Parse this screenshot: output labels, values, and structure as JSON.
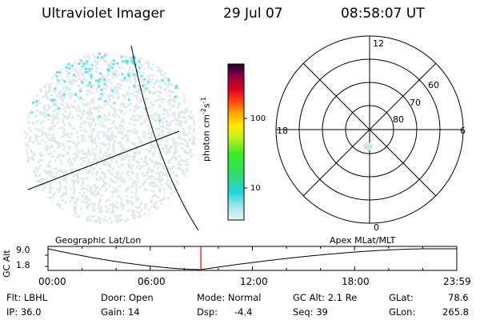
{
  "header": {
    "instrument": "Ultraviolet Imager",
    "date": "29 Jul 07",
    "time": "08:58:07 UT"
  },
  "colorbar": {
    "label_main": "photon cm",
    "label_sup1": "-2",
    "label_s": "s",
    "label_sup2": "-1",
    "ticks": [
      "100",
      "10"
    ]
  },
  "polar": {
    "mlt_labels": [
      "12",
      "18",
      "6",
      "0"
    ],
    "lat_labels": [
      "60",
      "70",
      "80"
    ]
  },
  "timeline": {
    "y_label": "GC Alt",
    "y_max": "9.0",
    "y_min": "1.8",
    "left_caption": "Geographic Lat/Lon",
    "right_caption": "Apex MLat/MLT",
    "x_ticks": [
      "00:00",
      "06:00",
      "12:00",
      "18:00",
      "23:59"
    ],
    "current_time_fraction": 0.374
  },
  "status": {
    "flt": "Flt: LBHL",
    "ip": "IP: 36.0",
    "door": "Door: Open",
    "gain": "Gain: 14",
    "mode": "Mode: Normal",
    "dsp_label": "Dsp:",
    "dsp_value": "-4.4",
    "gcalt": "GC Alt: 2.1 Re",
    "seq": "Seq: 39",
    "glat_label": "GLat:",
    "glat_value": "78.6",
    "glon_label": "GLon:",
    "glon_value": "265.8"
  },
  "colors": {
    "noise": "#dde8e8",
    "aurora": "#33ddee",
    "marker": "#dd0000"
  }
}
